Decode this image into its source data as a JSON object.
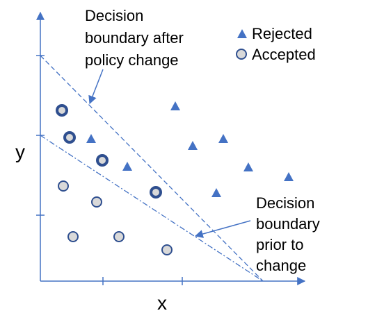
{
  "axes": {
    "x_label": "x",
    "y_label": "y"
  },
  "legend": {
    "items": [
      "Rejected",
      "Accepted"
    ]
  },
  "annotations": {
    "after": [
      "Decision",
      "boundary after",
      "policy change"
    ],
    "prior": [
      "Decision",
      "boundary",
      "prior to",
      "change"
    ]
  }
}
